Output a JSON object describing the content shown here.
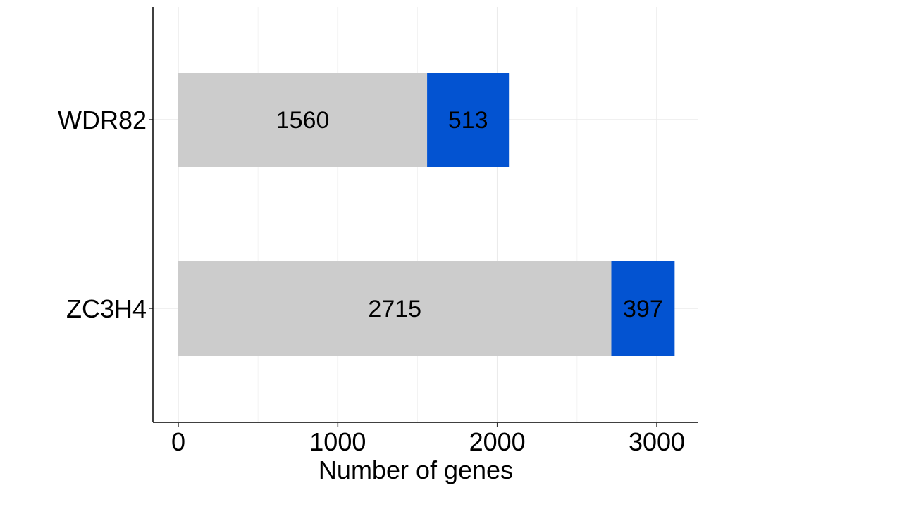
{
  "chart_data": {
    "type": "bar",
    "orientation": "horizontal",
    "stacked": true,
    "title": "",
    "xlabel": "Number of genes",
    "ylabel": "",
    "xlim": [
      0,
      3250
    ],
    "x_ticks": [
      0,
      1000,
      2000,
      3000
    ],
    "grid": true,
    "legend": "none",
    "categories": [
      "WDR82",
      "ZC3H4"
    ],
    "series": [
      {
        "values": [
          1560,
          2715
        ],
        "color": "#cccccc"
      },
      {
        "values": [
          513,
          397
        ],
        "color": "#0353d1"
      }
    ]
  }
}
